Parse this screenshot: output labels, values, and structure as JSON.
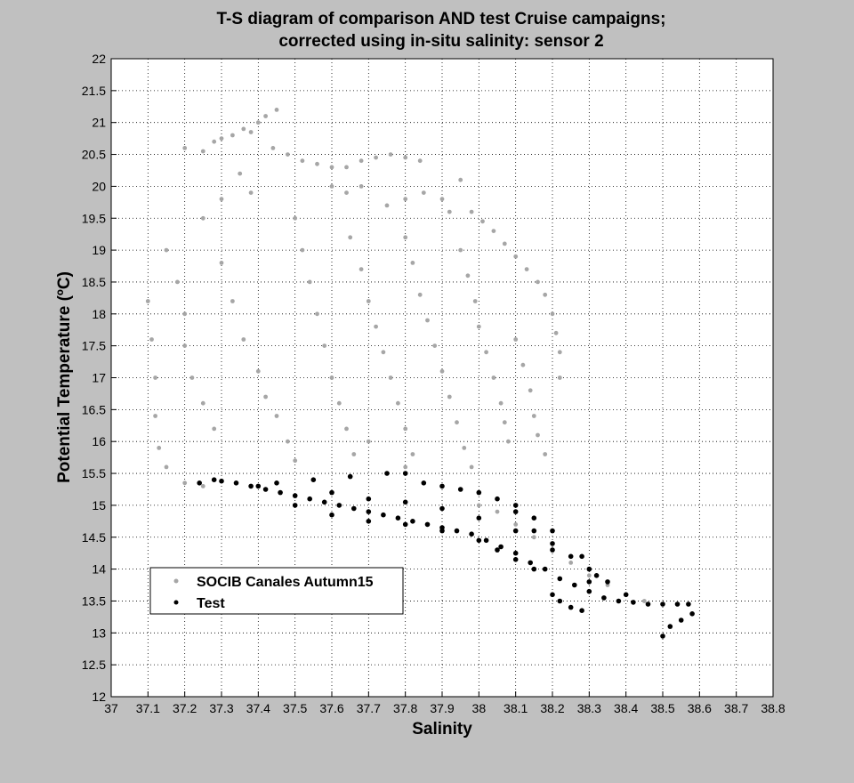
{
  "chart_data": {
    "type": "scatter",
    "title_lines": [
      "T-S diagram of comparison AND test Cruise campaigns;",
      "corrected using in-situ salinity: sensor 2"
    ],
    "xlabel": "Salinity",
    "ylabel": "Potential Temperature (ºC)",
    "xlim": [
      37,
      38.8
    ],
    "ylim": [
      12,
      22
    ],
    "x_ticks": [
      "37",
      "37.1",
      "37.2",
      "37.3",
      "37.4",
      "37.5",
      "37.6",
      "37.7",
      "37.8",
      "37.9",
      "38",
      "38.1",
      "38.2",
      "38.3",
      "38.4",
      "38.5",
      "38.6",
      "38.7",
      "38.8"
    ],
    "y_ticks": [
      "12",
      "12.5",
      "13",
      "13.5",
      "14",
      "14.5",
      "15",
      "15.5",
      "16",
      "16.5",
      "17",
      "17.5",
      "18",
      "18.5",
      "19",
      "19.5",
      "20",
      "20.5",
      "21",
      "21.5",
      "22"
    ],
    "grid": true,
    "legend_position": "lower-left",
    "series": [
      {
        "name": "SOCIB Canales Autumn15",
        "color": "#a6a6a6",
        "marker": "dot",
        "points": [
          [
            37.1,
            18.2
          ],
          [
            37.11,
            17.6
          ],
          [
            37.12,
            17.0
          ],
          [
            37.12,
            16.4
          ],
          [
            37.13,
            15.9
          ],
          [
            37.15,
            15.6
          ],
          [
            37.2,
            15.35
          ],
          [
            37.25,
            15.3
          ],
          [
            37.15,
            19.0
          ],
          [
            37.18,
            18.5
          ],
          [
            37.2,
            18.0
          ],
          [
            37.2,
            17.5
          ],
          [
            37.22,
            17.0
          ],
          [
            37.25,
            16.6
          ],
          [
            37.28,
            16.2
          ],
          [
            37.2,
            20.6
          ],
          [
            37.25,
            20.55
          ],
          [
            37.28,
            20.7
          ],
          [
            37.3,
            20.75
          ],
          [
            37.33,
            20.8
          ],
          [
            37.36,
            20.9
          ],
          [
            37.38,
            20.85
          ],
          [
            37.4,
            21.0
          ],
          [
            37.42,
            21.1
          ],
          [
            37.45,
            21.2
          ],
          [
            37.44,
            20.6
          ],
          [
            37.48,
            20.5
          ],
          [
            37.52,
            20.4
          ],
          [
            37.56,
            20.35
          ],
          [
            37.6,
            20.3
          ],
          [
            37.64,
            20.3
          ],
          [
            37.68,
            20.4
          ],
          [
            37.72,
            20.45
          ],
          [
            37.76,
            20.5
          ],
          [
            37.8,
            20.45
          ],
          [
            37.84,
            20.4
          ],
          [
            37.6,
            20.0
          ],
          [
            37.64,
            19.9
          ],
          [
            37.68,
            20.0
          ],
          [
            37.75,
            19.7
          ],
          [
            37.8,
            19.8
          ],
          [
            37.85,
            19.9
          ],
          [
            37.9,
            19.8
          ],
          [
            37.92,
            19.6
          ],
          [
            37.95,
            20.1
          ],
          [
            37.98,
            19.6
          ],
          [
            38.01,
            19.45
          ],
          [
            38.04,
            19.3
          ],
          [
            38.07,
            19.1
          ],
          [
            38.1,
            18.9
          ],
          [
            38.13,
            18.7
          ],
          [
            38.16,
            18.5
          ],
          [
            38.18,
            18.3
          ],
          [
            38.2,
            18.0
          ],
          [
            38.21,
            17.7
          ],
          [
            38.22,
            17.4
          ],
          [
            38.22,
            17.0
          ],
          [
            37.25,
            19.5
          ],
          [
            37.3,
            19.8
          ],
          [
            37.35,
            20.2
          ],
          [
            37.38,
            19.9
          ],
          [
            37.3,
            18.8
          ],
          [
            37.33,
            18.2
          ],
          [
            37.36,
            17.6
          ],
          [
            37.4,
            17.1
          ],
          [
            37.42,
            16.7
          ],
          [
            37.45,
            16.4
          ],
          [
            37.48,
            16.0
          ],
          [
            37.5,
            15.7
          ],
          [
            37.5,
            19.5
          ],
          [
            37.52,
            19.0
          ],
          [
            37.54,
            18.5
          ],
          [
            37.56,
            18.0
          ],
          [
            37.58,
            17.5
          ],
          [
            37.6,
            17.0
          ],
          [
            37.62,
            16.6
          ],
          [
            37.64,
            16.2
          ],
          [
            37.66,
            15.8
          ],
          [
            37.65,
            19.2
          ],
          [
            37.68,
            18.7
          ],
          [
            37.7,
            18.2
          ],
          [
            37.72,
            17.8
          ],
          [
            37.74,
            17.4
          ],
          [
            37.76,
            17.0
          ],
          [
            37.78,
            16.6
          ],
          [
            37.8,
            16.2
          ],
          [
            37.82,
            15.8
          ],
          [
            37.8,
            19.2
          ],
          [
            37.82,
            18.8
          ],
          [
            37.84,
            18.3
          ],
          [
            37.86,
            17.9
          ],
          [
            37.88,
            17.5
          ],
          [
            37.9,
            17.1
          ],
          [
            37.92,
            16.7
          ],
          [
            37.94,
            16.3
          ],
          [
            37.96,
            15.9
          ],
          [
            37.98,
            15.6
          ],
          [
            37.95,
            19.0
          ],
          [
            37.97,
            18.6
          ],
          [
            37.99,
            18.2
          ],
          [
            38.0,
            17.8
          ],
          [
            38.02,
            17.4
          ],
          [
            38.04,
            17.0
          ],
          [
            38.06,
            16.6
          ],
          [
            38.07,
            16.3
          ],
          [
            38.08,
            16.0
          ],
          [
            38.1,
            17.6
          ],
          [
            38.12,
            17.2
          ],
          [
            38.14,
            16.8
          ],
          [
            38.15,
            16.4
          ],
          [
            38.16,
            16.1
          ],
          [
            38.18,
            15.8
          ],
          [
            37.7,
            16.0
          ],
          [
            37.8,
            15.6
          ],
          [
            37.9,
            15.3
          ],
          [
            38.0,
            15.0
          ],
          [
            38.05,
            14.9
          ],
          [
            38.1,
            14.7
          ],
          [
            38.15,
            14.5
          ],
          [
            38.2,
            14.3
          ],
          [
            38.25,
            14.1
          ],
          [
            38.3,
            13.9
          ],
          [
            38.35,
            13.75
          ],
          [
            38.4,
            13.6
          ],
          [
            38.45,
            13.5
          ],
          [
            38.5,
            13.45
          ]
        ]
      },
      {
        "name": "Test",
        "color": "#000000",
        "marker": "dot",
        "points": [
          [
            37.24,
            15.35
          ],
          [
            37.28,
            15.4
          ],
          [
            37.3,
            15.38
          ],
          [
            37.34,
            15.35
          ],
          [
            37.38,
            15.3
          ],
          [
            37.42,
            15.25
          ],
          [
            37.46,
            15.2
          ],
          [
            37.5,
            15.15
          ],
          [
            37.54,
            15.1
          ],
          [
            37.58,
            15.05
          ],
          [
            37.62,
            15.0
          ],
          [
            37.66,
            14.95
          ],
          [
            37.7,
            14.9
          ],
          [
            37.74,
            14.85
          ],
          [
            37.78,
            14.8
          ],
          [
            37.82,
            14.75
          ],
          [
            37.86,
            14.7
          ],
          [
            37.9,
            14.65
          ],
          [
            37.94,
            14.6
          ],
          [
            37.98,
            14.55
          ],
          [
            38.02,
            14.45
          ],
          [
            38.06,
            14.35
          ],
          [
            38.1,
            14.25
          ],
          [
            38.14,
            14.1
          ],
          [
            38.18,
            14.0
          ],
          [
            38.22,
            13.85
          ],
          [
            38.26,
            13.75
          ],
          [
            38.3,
            13.65
          ],
          [
            38.34,
            13.55
          ],
          [
            38.38,
            13.5
          ],
          [
            38.42,
            13.48
          ],
          [
            38.46,
            13.45
          ],
          [
            38.5,
            13.45
          ],
          [
            38.54,
            13.45
          ],
          [
            38.57,
            13.45
          ],
          [
            38.58,
            13.3
          ],
          [
            38.55,
            13.2
          ],
          [
            38.52,
            13.1
          ],
          [
            38.5,
            12.95
          ],
          [
            37.45,
            15.35
          ],
          [
            37.55,
            15.4
          ],
          [
            37.65,
            15.45
          ],
          [
            37.75,
            15.5
          ],
          [
            37.8,
            15.5
          ],
          [
            37.9,
            15.3
          ],
          [
            38.0,
            15.2
          ],
          [
            38.1,
            14.9
          ],
          [
            38.15,
            14.6
          ],
          [
            38.2,
            14.4
          ],
          [
            38.25,
            14.2
          ],
          [
            38.3,
            14.0
          ],
          [
            38.35,
            13.8
          ],
          [
            38.4,
            13.6
          ],
          [
            38.25,
            13.4
          ],
          [
            38.28,
            13.35
          ],
          [
            38.22,
            13.5
          ],
          [
            38.2,
            13.6
          ],
          [
            37.5,
            15.0
          ],
          [
            37.6,
            14.85
          ],
          [
            37.7,
            14.75
          ],
          [
            37.8,
            14.7
          ],
          [
            37.9,
            14.6
          ],
          [
            38.0,
            14.45
          ],
          [
            38.05,
            14.3
          ],
          [
            38.1,
            14.15
          ],
          [
            38.15,
            14.0
          ],
          [
            37.4,
            15.3
          ],
          [
            37.6,
            15.2
          ],
          [
            37.7,
            15.1
          ],
          [
            37.8,
            15.05
          ],
          [
            37.9,
            14.95
          ],
          [
            38.0,
            14.8
          ],
          [
            38.1,
            14.6
          ],
          [
            38.2,
            14.3
          ],
          [
            38.3,
            13.8
          ],
          [
            37.85,
            15.35
          ],
          [
            37.95,
            15.25
          ],
          [
            38.05,
            15.1
          ],
          [
            38.1,
            15.0
          ],
          [
            38.15,
            14.8
          ],
          [
            38.2,
            14.6
          ],
          [
            38.28,
            14.2
          ],
          [
            38.32,
            13.9
          ]
        ]
      }
    ]
  }
}
